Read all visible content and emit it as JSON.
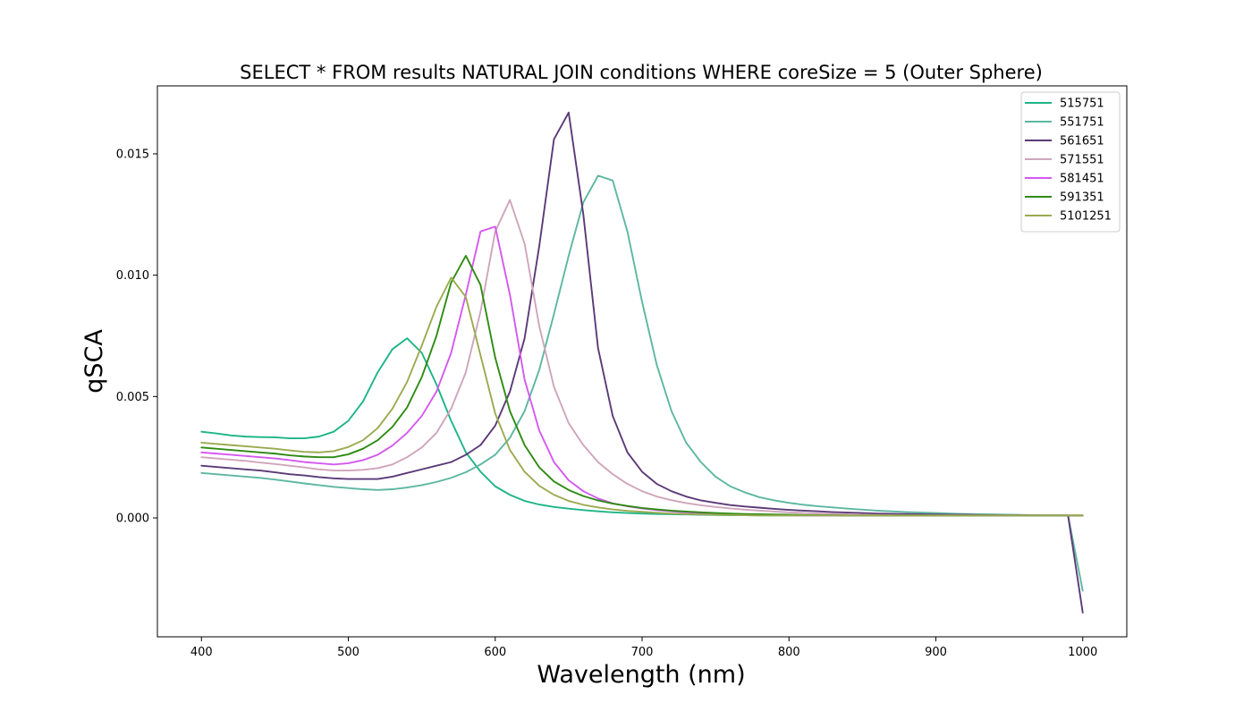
{
  "chart_data": {
    "type": "line",
    "title": "SELECT * FROM results NATURAL JOIN conditions WHERE coreSize = 5 (Outer Sphere)",
    "xlabel": "Wavelength (nm)",
    "ylabel": "qSCA",
    "xlim": [
      370,
      1030
    ],
    "ylim": [
      -0.0049,
      0.0178
    ],
    "xticks": [
      400,
      500,
      600,
      700,
      800,
      900,
      1000
    ],
    "yticks": [
      0.0,
      0.005,
      0.01,
      0.015
    ],
    "ytick_labels": [
      "0.000",
      "0.005",
      "0.010",
      "0.015"
    ],
    "grid": false,
    "legend_position": "top-right",
    "x": [
      400,
      410,
      420,
      430,
      440,
      450,
      460,
      470,
      480,
      490,
      500,
      510,
      520,
      530,
      540,
      550,
      560,
      570,
      580,
      590,
      600,
      610,
      620,
      630,
      640,
      650,
      660,
      670,
      680,
      690,
      700,
      710,
      720,
      730,
      740,
      750,
      760,
      770,
      780,
      790,
      800,
      810,
      820,
      830,
      840,
      850,
      860,
      870,
      880,
      890,
      900,
      910,
      920,
      930,
      940,
      950,
      960,
      970,
      980,
      990,
      1000
    ],
    "series": [
      {
        "name": "515751",
        "color": "#1db586",
        "values": [
          0.00355,
          0.00348,
          0.0034,
          0.00335,
          0.00333,
          0.00332,
          0.00328,
          0.00328,
          0.00335,
          0.00355,
          0.004,
          0.0048,
          0.006,
          0.00695,
          0.0074,
          0.0068,
          0.0055,
          0.004,
          0.0027,
          0.0019,
          0.0013,
          0.00095,
          0.0007,
          0.00055,
          0.00045,
          0.00038,
          0.00032,
          0.00027,
          0.00023,
          0.0002,
          0.00018,
          0.00016,
          0.00015,
          0.00014,
          0.00013,
          0.00012,
          0.00011,
          0.00011,
          0.0001,
          0.0001,
          0.0001,
          0.0001,
          0.0001,
          0.0001,
          0.0001,
          0.0001,
          0.0001,
          0.0001,
          0.0001,
          0.0001,
          0.0001,
          0.0001,
          0.0001,
          0.0001,
          0.0001,
          0.0001,
          0.0001,
          0.0001,
          0.0001,
          0.0001,
          0.0001
        ]
      },
      {
        "name": "551751",
        "color": "#5db7a0",
        "values": [
          0.00185,
          0.0018,
          0.00175,
          0.0017,
          0.00165,
          0.00158,
          0.0015,
          0.00142,
          0.00135,
          0.00128,
          0.00123,
          0.00118,
          0.00115,
          0.00118,
          0.00125,
          0.00135,
          0.00148,
          0.00165,
          0.00188,
          0.0022,
          0.0026,
          0.0033,
          0.0044,
          0.0061,
          0.0084,
          0.0108,
          0.013,
          0.0141,
          0.0139,
          0.0118,
          0.0089,
          0.0063,
          0.0044,
          0.0031,
          0.0023,
          0.0017,
          0.0013,
          0.00105,
          0.00085,
          0.00072,
          0.00062,
          0.00054,
          0.00048,
          0.00043,
          0.00038,
          0.00034,
          0.0003,
          0.00027,
          0.00024,
          0.00022,
          0.0002,
          0.00018,
          0.00016,
          0.00015,
          0.00014,
          0.00013,
          0.00012,
          0.00011,
          0.00011,
          0.0001,
          -0.003
        ]
      },
      {
        "name": "561651",
        "color": "#5b3a78",
        "values": [
          0.00215,
          0.0021,
          0.00205,
          0.002,
          0.00195,
          0.00188,
          0.0018,
          0.00175,
          0.00168,
          0.00163,
          0.0016,
          0.0016,
          0.0016,
          0.0017,
          0.00185,
          0.002,
          0.00215,
          0.0023,
          0.0026,
          0.003,
          0.0038,
          0.0052,
          0.0074,
          0.0112,
          0.0156,
          0.0167,
          0.0125,
          0.007,
          0.0042,
          0.0027,
          0.0019,
          0.0014,
          0.0011,
          0.00088,
          0.00072,
          0.00062,
          0.00053,
          0.00047,
          0.00042,
          0.00037,
          0.00033,
          0.0003,
          0.00027,
          0.00024,
          0.00022,
          0.0002,
          0.00018,
          0.00017,
          0.00016,
          0.00015,
          0.00014,
          0.00013,
          0.00013,
          0.00012,
          0.00012,
          0.00011,
          0.00011,
          0.0001,
          0.0001,
          0.0001,
          -0.0039
        ]
      },
      {
        "name": "571551",
        "color": "#cfa5bb",
        "values": [
          0.0025,
          0.00245,
          0.0024,
          0.00235,
          0.00228,
          0.00222,
          0.00215,
          0.00208,
          0.002,
          0.00195,
          0.00195,
          0.00198,
          0.00205,
          0.0022,
          0.0025,
          0.0029,
          0.0035,
          0.0045,
          0.006,
          0.0085,
          0.0118,
          0.0131,
          0.0113,
          0.0079,
          0.0054,
          0.0039,
          0.003,
          0.0023,
          0.0018,
          0.0014,
          0.0011,
          0.00088,
          0.00073,
          0.00061,
          0.00052,
          0.00045,
          0.00039,
          0.00034,
          0.0003,
          0.00026,
          0.00023,
          0.0002,
          0.00018,
          0.00016,
          0.00015,
          0.00013,
          0.00012,
          0.00011,
          0.0001,
          0.0001,
          0.0001,
          0.0001,
          0.0001,
          0.0001,
          0.0001,
          0.0001,
          0.0001,
          0.0001,
          0.0001,
          0.0001,
          0.0001
        ]
      },
      {
        "name": "581451",
        "color": "#d459f0",
        "values": [
          0.0027,
          0.00265,
          0.0026,
          0.00255,
          0.0025,
          0.00245,
          0.00238,
          0.0023,
          0.00225,
          0.0022,
          0.00225,
          0.00238,
          0.0026,
          0.00298,
          0.0035,
          0.0042,
          0.0052,
          0.0068,
          0.0092,
          0.0118,
          0.012,
          0.0092,
          0.0057,
          0.0036,
          0.0023,
          0.00155,
          0.0011,
          0.0008,
          0.0006,
          0.00048,
          0.00039,
          0.00032,
          0.00027,
          0.00023,
          0.0002,
          0.00018,
          0.00016,
          0.00014,
          0.00013,
          0.00012,
          0.00011,
          0.0001,
          0.0001,
          0.0001,
          0.0001,
          0.0001,
          0.0001,
          0.0001,
          0.0001,
          0.0001,
          0.0001,
          0.0001,
          0.0001,
          0.0001,
          0.0001,
          0.0001,
          0.0001,
          0.0001,
          0.0001,
          0.0001,
          0.0001
        ]
      },
      {
        "name": "591351",
        "color": "#2e8b12",
        "values": [
          0.0029,
          0.00285,
          0.0028,
          0.00275,
          0.0027,
          0.00265,
          0.00258,
          0.00253,
          0.0025,
          0.0025,
          0.00262,
          0.00285,
          0.0032,
          0.00375,
          0.00455,
          0.0058,
          0.0075,
          0.0097,
          0.0108,
          0.0096,
          0.0066,
          0.0044,
          0.003,
          0.00208,
          0.0015,
          0.00115,
          0.0009,
          0.00072,
          0.00059,
          0.00049,
          0.00041,
          0.00035,
          0.0003,
          0.00026,
          0.00023,
          0.0002,
          0.00018,
          0.00016,
          0.00015,
          0.00014,
          0.00013,
          0.00012,
          0.00011,
          0.00011,
          0.0001,
          0.0001,
          0.0001,
          0.0001,
          0.0001,
          0.0001,
          0.0001,
          0.0001,
          0.0001,
          0.0001,
          0.0001,
          0.0001,
          0.0001,
          0.0001,
          0.0001,
          0.0001,
          0.0001
        ]
      },
      {
        "name": "5101251",
        "color": "#9aab50",
        "values": [
          0.0031,
          0.00305,
          0.003,
          0.00295,
          0.0029,
          0.00285,
          0.00278,
          0.00272,
          0.0027,
          0.00275,
          0.00292,
          0.0032,
          0.0037,
          0.0045,
          0.0056,
          0.0071,
          0.0087,
          0.0099,
          0.0091,
          0.0067,
          0.0043,
          0.0028,
          0.0019,
          0.00132,
          0.00095,
          0.0007,
          0.00054,
          0.00043,
          0.00035,
          0.00029,
          0.00025,
          0.00021,
          0.00018,
          0.00016,
          0.00014,
          0.00013,
          0.00012,
          0.00011,
          0.0001,
          0.0001,
          0.0001,
          0.0001,
          0.0001,
          0.0001,
          0.0001,
          0.0001,
          0.0001,
          0.0001,
          0.0001,
          0.0001,
          0.0001,
          0.0001,
          0.0001,
          0.0001,
          0.0001,
          0.0001,
          0.0001,
          0.0001,
          0.0001,
          0.0001,
          0.0001
        ]
      }
    ]
  }
}
